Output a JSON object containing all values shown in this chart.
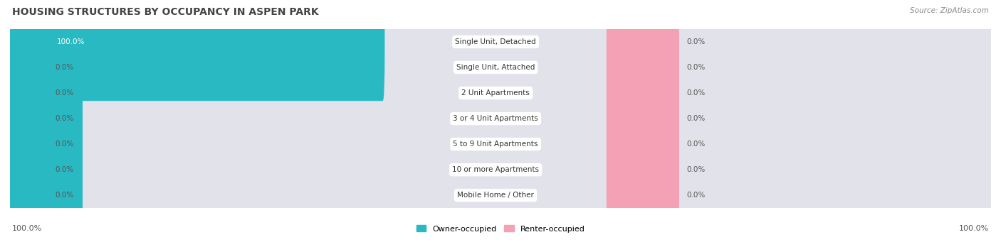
{
  "title": "HOUSING STRUCTURES BY OCCUPANCY IN ASPEN PARK",
  "source": "Source: ZipAtlas.com",
  "categories": [
    "Single Unit, Detached",
    "Single Unit, Attached",
    "2 Unit Apartments",
    "3 or 4 Unit Apartments",
    "5 to 9 Unit Apartments",
    "10 or more Apartments",
    "Mobile Home / Other"
  ],
  "owner_values": [
    100.0,
    0.0,
    0.0,
    0.0,
    0.0,
    0.0,
    0.0
  ],
  "renter_values": [
    0.0,
    0.0,
    0.0,
    0.0,
    0.0,
    0.0,
    0.0
  ],
  "owner_color": "#29B9C2",
  "renter_color": "#F4A0B5",
  "bar_bg_color": "#E2E2EA",
  "bar_bg_color2": "#EEEEF4",
  "title_fontsize": 10,
  "source_fontsize": 7.5,
  "label_fontsize": 7.5,
  "cat_fontsize": 7.5,
  "footer_fontsize": 8,
  "background_color": "#FFFFFF",
  "row_bg_colors": [
    "#EBEBF2",
    "#FFFFFF",
    "#EBEBF2",
    "#FFFFFF",
    "#EBEBF2",
    "#FFFFFF",
    "#EBEBF2"
  ]
}
